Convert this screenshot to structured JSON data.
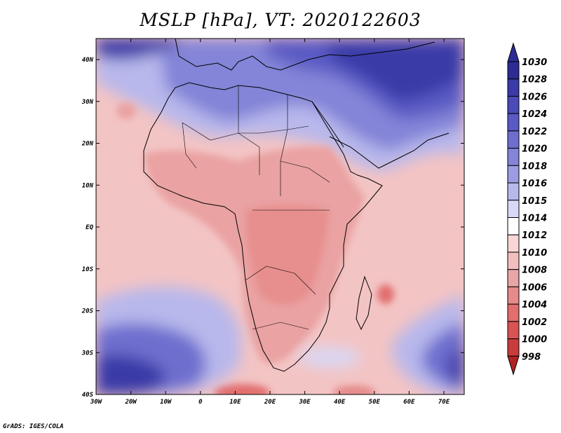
{
  "title": "MSLP [hPa], VT: 2020122603",
  "credit": "GrADS: IGES/COLA",
  "axes": {
    "lat_labels": [
      "40N",
      "30N",
      "20N",
      "10N",
      "EQ",
      "10S",
      "20S",
      "30S",
      "40S"
    ],
    "lon_labels": [
      "30W",
      "20W",
      "10W",
      "0",
      "10E",
      "20E",
      "30E",
      "40E",
      "50E",
      "60E",
      "70E"
    ]
  },
  "colorbar": {
    "levels": [
      "1030",
      "1028",
      "1026",
      "1024",
      "1022",
      "1020",
      "1018",
      "1016",
      "1015",
      "1014",
      "1012",
      "1010",
      "1008",
      "1006",
      "1004",
      "1002",
      "1000",
      "998"
    ],
    "colors": [
      "#2c2c94",
      "#3a3aa8",
      "#4a4ab8",
      "#5a5ac4",
      "#6e6ecf",
      "#8484d8",
      "#9c9ce2",
      "#b8b8ec",
      "#d8d8f6",
      "#ffffff",
      "#f8d6d6",
      "#f2bebe",
      "#e8a6a6",
      "#e68a8a",
      "#e26e6e",
      "#d85454",
      "#c83c3c",
      "#b02424"
    ]
  },
  "map": {
    "water_color": "#f3c4c4",
    "land_color": "#eaa2a2",
    "high_north_color": "#2c2c94",
    "high_south_color": "#4a4ab8"
  }
}
